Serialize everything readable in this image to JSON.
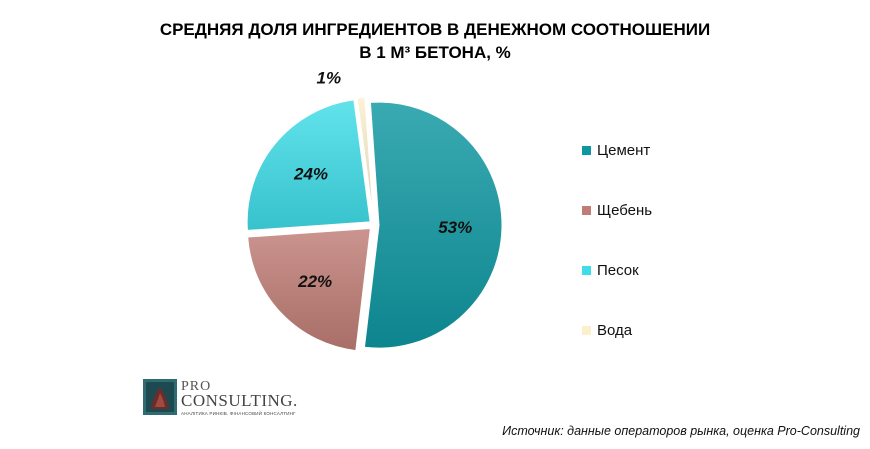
{
  "chart_data": {
    "type": "pie",
    "title_lines": [
      "СРЕДНЯЯ ДОЛЯ ИНГРЕДИЕНТОВ В ДЕНЕЖНОМ СООТНОШЕНИИ",
      "В 1 М³ БЕТОНА, %"
    ],
    "slices": [
      {
        "label": "Цемент",
        "value": 53,
        "value_label": "53%",
        "color": "#0f97a1"
      },
      {
        "label": "Щебень",
        "value": 22,
        "value_label": "22%",
        "color": "#bf7d75"
      },
      {
        "label": "Песок",
        "value": 24,
        "value_label": "24%",
        "color": "#3fdde8"
      },
      {
        "label": "Вода",
        "value": 1,
        "value_label": "1%",
        "color": "#fbefcc"
      }
    ],
    "legend_position": "right"
  },
  "logo": {
    "pro": "PRO",
    "consulting": "CONSULTING.",
    "tagline": "АНАЛІТИКА РИНКІВ. ФІНАНСОВИЙ КОНСАЛТИНГ"
  },
  "source": "Источник: данные операторов рынка, оценка Pro-Consulting"
}
